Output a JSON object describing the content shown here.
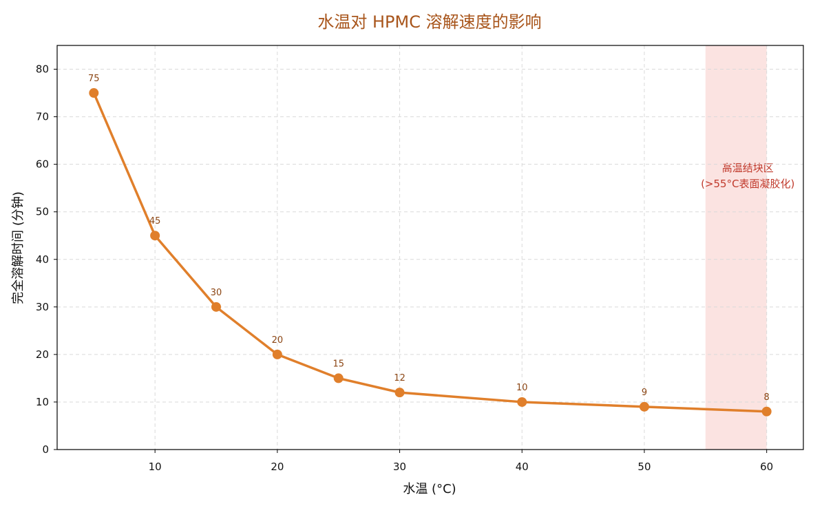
{
  "chart_data": {
    "type": "line",
    "title": "水温对 HPMC 溶解速度的影响",
    "xlabel": "水温 (°C)",
    "ylabel": "完全溶解时间 (分钟)",
    "x": [
      5,
      10,
      15,
      20,
      25,
      30,
      40,
      50,
      60
    ],
    "series": [
      {
        "values": [
          75,
          45,
          30,
          20,
          15,
          12,
          10,
          9,
          8
        ]
      }
    ],
    "data_labels": [
      "75",
      "45",
      "30",
      "20",
      "15",
      "12",
      "10",
      "9",
      "8"
    ],
    "xlim": [
      2,
      63
    ],
    "ylim": [
      0,
      85
    ],
    "xticks": [
      10,
      20,
      30,
      40,
      50,
      60
    ],
    "yticks": [
      0,
      10,
      20,
      30,
      40,
      50,
      60,
      70,
      80
    ],
    "xtick_labels": [
      "10",
      "20",
      "30",
      "40",
      "50",
      "60"
    ],
    "ytick_labels": [
      "0",
      "10",
      "20",
      "30",
      "40",
      "50",
      "60",
      "70",
      "80"
    ],
    "grid": true,
    "legend": "none",
    "highlight_zone": {
      "x_range": [
        55,
        60
      ],
      "label_line1": "高温结块区",
      "label_line2": "(>55°C表面凝胶化)"
    },
    "colors": {
      "line": "#e07f2b",
      "title": "#a8551b",
      "data_label": "#8b4513",
      "zone_fill": "#fbe3e1",
      "zone_text": "#c0392b",
      "grid": "#d9d9d9"
    }
  }
}
